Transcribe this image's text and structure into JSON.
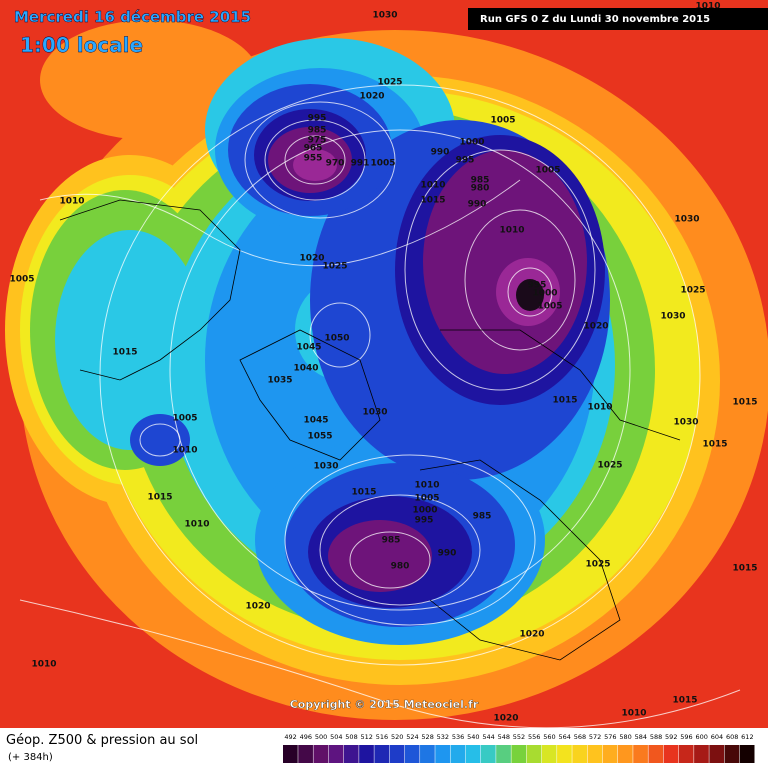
{
  "header": {
    "title": "Mercredi 16 décembre 2015",
    "subtitle": "1:00 locale",
    "run": "Run GFS 0 Z du Lundi 30 novembre 2015"
  },
  "isobar_labels": [
    1030,
    1010,
    1025,
    1020,
    995,
    985,
    975,
    965,
    955,
    970,
    991,
    1005,
    990,
    995,
    1000,
    1005,
    1005,
    985,
    980,
    990,
    1010,
    1015,
    1010,
    995,
    1000,
    1005,
    1010,
    1005,
    1020,
    1025,
    1050,
    1045,
    1040,
    1035,
    1030,
    1045,
    1055,
    1030,
    1015,
    1015,
    1005,
    1010,
    1015,
    1010,
    1010,
    1005,
    1000,
    995,
    985,
    985,
    980,
    990,
    1025,
    1015,
    1010,
    1020,
    1030,
    1025,
    1030,
    1030,
    1015,
    1015,
    1015,
    1025,
    1020,
    1020,
    1010,
    1020,
    1010,
    1015
  ],
  "copyright": "Copyright © 2015 Meteociel.fr",
  "legend": {
    "title": "Géop. Z500 & pression au sol",
    "subtitle": "(+ 384h)",
    "scale": [
      492,
      496,
      500,
      504,
      508,
      512,
      516,
      520,
      524,
      528,
      532,
      536,
      540,
      544,
      548,
      552,
      556,
      560,
      564,
      568,
      572,
      576,
      580,
      584,
      588,
      592,
      596,
      600,
      604,
      608,
      612
    ]
  }
}
